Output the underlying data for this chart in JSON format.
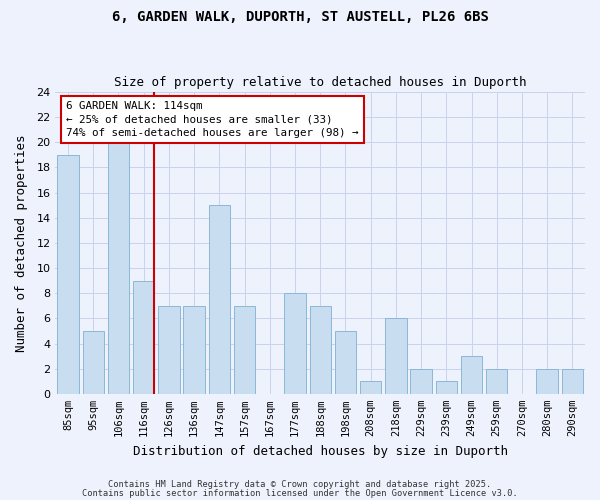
{
  "title": "6, GARDEN WALK, DUPORTH, ST AUSTELL, PL26 6BS",
  "subtitle": "Size of property relative to detached houses in Duporth",
  "xlabel": "Distribution of detached houses by size in Duporth",
  "ylabel": "Number of detached properties",
  "bar_labels": [
    "85sqm",
    "95sqm",
    "106sqm",
    "116sqm",
    "126sqm",
    "136sqm",
    "147sqm",
    "157sqm",
    "167sqm",
    "177sqm",
    "188sqm",
    "198sqm",
    "208sqm",
    "218sqm",
    "229sqm",
    "239sqm",
    "249sqm",
    "259sqm",
    "270sqm",
    "280sqm",
    "290sqm"
  ],
  "bar_values": [
    19,
    5,
    20,
    9,
    7,
    7,
    15,
    7,
    0,
    8,
    7,
    5,
    1,
    6,
    2,
    1,
    3,
    2,
    0,
    2,
    2
  ],
  "bar_color": "#c8ddf0",
  "bar_edge_color": "#8ab8d8",
  "vline_x_index": 3,
  "vline_color": "#cc0000",
  "annotation_text": "6 GARDEN WALK: 114sqm\n← 25% of detached houses are smaller (33)\n74% of semi-detached houses are larger (98) →",
  "annotation_box_edge_color": "#cc0000",
  "ylim": [
    0,
    24
  ],
  "yticks": [
    0,
    2,
    4,
    6,
    8,
    10,
    12,
    14,
    16,
    18,
    20,
    22,
    24
  ],
  "footer1": "Contains HM Land Registry data © Crown copyright and database right 2025.",
  "footer2": "Contains public sector information licensed under the Open Government Licence v3.0.",
  "bg_color": "#eef2fc",
  "grid_color": "#c8d4ec"
}
